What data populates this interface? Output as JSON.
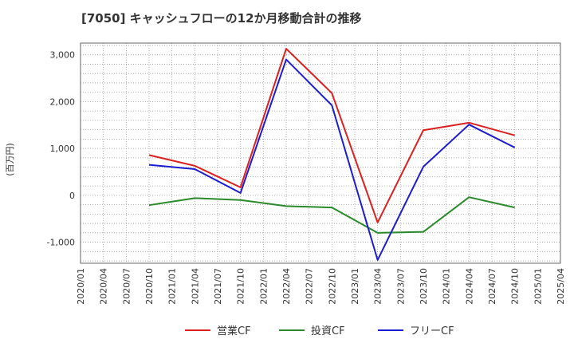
{
  "chart_data": {
    "type": "line",
    "title": "[7050]  キャッシュフローの12か月移動合計の推移",
    "ylabel": "(百万円)",
    "xlabel": "",
    "ylim": [
      -1450,
      3250
    ],
    "yticks": [
      -1000,
      0,
      1000,
      2000,
      3000
    ],
    "ytick_labels": [
      "-1,000",
      "0",
      "1,000",
      "2,000",
      "3,000"
    ],
    "x_categories": [
      "2020/01",
      "2020/04",
      "2020/07",
      "2020/10",
      "2021/01",
      "2021/04",
      "2021/07",
      "2021/10",
      "2022/01",
      "2022/04",
      "2022/07",
      "2022/10",
      "2023/01",
      "2023/04",
      "2023/07",
      "2023/10",
      "2024/01",
      "2024/04",
      "2024/07",
      "2024/10",
      "2025/01",
      "2025/04"
    ],
    "grid": true,
    "legend_position": "bottom",
    "series": [
      {
        "name": "営業CF",
        "color": "#dd1f1f",
        "points": [
          [
            "2020/10",
            860
          ],
          [
            "2021/04",
            630
          ],
          [
            "2021/10",
            170
          ],
          [
            "2022/04",
            3130
          ],
          [
            "2022/10",
            2180
          ],
          [
            "2023/04",
            -580
          ],
          [
            "2023/10",
            1390
          ],
          [
            "2024/04",
            1550
          ],
          [
            "2024/10",
            1280
          ]
        ]
      },
      {
        "name": "投資CF",
        "color": "#2a8a2a",
        "points": [
          [
            "2020/10",
            -210
          ],
          [
            "2021/04",
            -60
          ],
          [
            "2021/10",
            -100
          ],
          [
            "2022/04",
            -230
          ],
          [
            "2022/10",
            -260
          ],
          [
            "2023/04",
            -800
          ],
          [
            "2023/10",
            -780
          ],
          [
            "2024/04",
            -40
          ],
          [
            "2024/10",
            -260
          ]
        ]
      },
      {
        "name": "フリーCF",
        "color": "#1c1cd0",
        "points": [
          [
            "2020/10",
            650
          ],
          [
            "2021/04",
            560
          ],
          [
            "2021/10",
            50
          ],
          [
            "2022/04",
            2900
          ],
          [
            "2022/10",
            1920
          ],
          [
            "2023/04",
            -1380
          ],
          [
            "2023/10",
            610
          ],
          [
            "2024/04",
            1510
          ],
          [
            "2024/10",
            1020
          ]
        ]
      }
    ]
  }
}
